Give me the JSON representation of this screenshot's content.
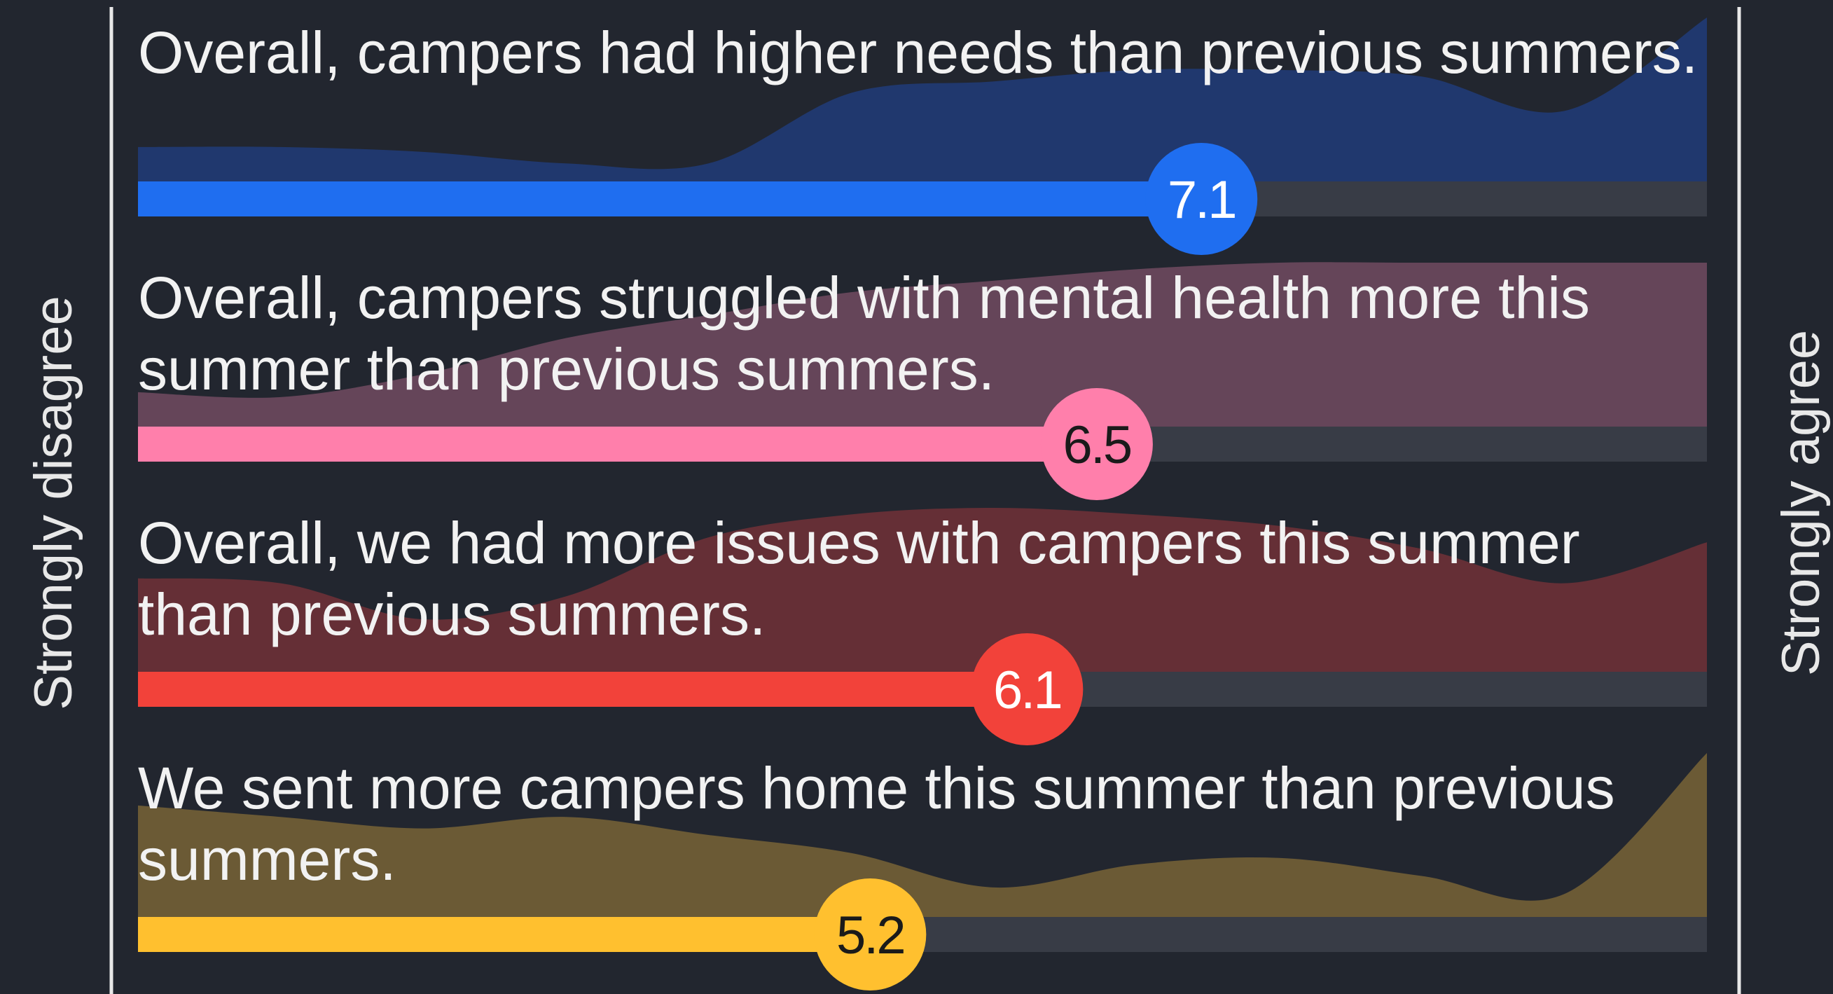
{
  "chart_data": {
    "type": "bar",
    "orientation": "horizontal",
    "left_label": "Strongly disagree",
    "right_label": "Strongly agree",
    "categories": [
      "Overall, campers had higher needs than previous summers.",
      "Overall, campers struggled with mental health more this summer than previous summers.",
      "Overall, we had more issues with campers this summer than previous summers.",
      "We sent more campers home this summer than previous summers."
    ],
    "values": [
      7.1,
      6.5,
      6.1,
      5.2
    ],
    "colors": [
      "#1f6ef0",
      "#ff7fab",
      "#f2423a",
      "#ffc02f"
    ],
    "area_colors": [
      "#20386e",
      "#654559",
      "#652f36",
      "#6b5a35"
    ],
    "label_colors": [
      "#ffffff",
      "#1a1a1a",
      "#ffffff",
      "#1a1a1a"
    ],
    "distribution": [
      [
        0.21,
        0.21,
        0.18,
        0.11,
        0.11,
        0.54,
        0.61,
        0.68,
        0.68,
        0.64,
        0.43,
        1.0
      ],
      [
        0.21,
        0.18,
        0.32,
        0.54,
        0.68,
        0.82,
        0.89,
        0.96,
        1.0,
        1.0,
        1.0,
        1.0
      ],
      [
        0.57,
        0.54,
        0.32,
        0.46,
        0.82,
        0.96,
        1.0,
        0.96,
        0.89,
        0.75,
        0.54,
        0.79
      ],
      [
        0.68,
        0.61,
        0.54,
        0.61,
        0.5,
        0.39,
        0.18,
        0.32,
        0.36,
        0.25,
        0.14,
        1.0
      ]
    ],
    "xlim": [
      1,
      10
    ]
  }
}
